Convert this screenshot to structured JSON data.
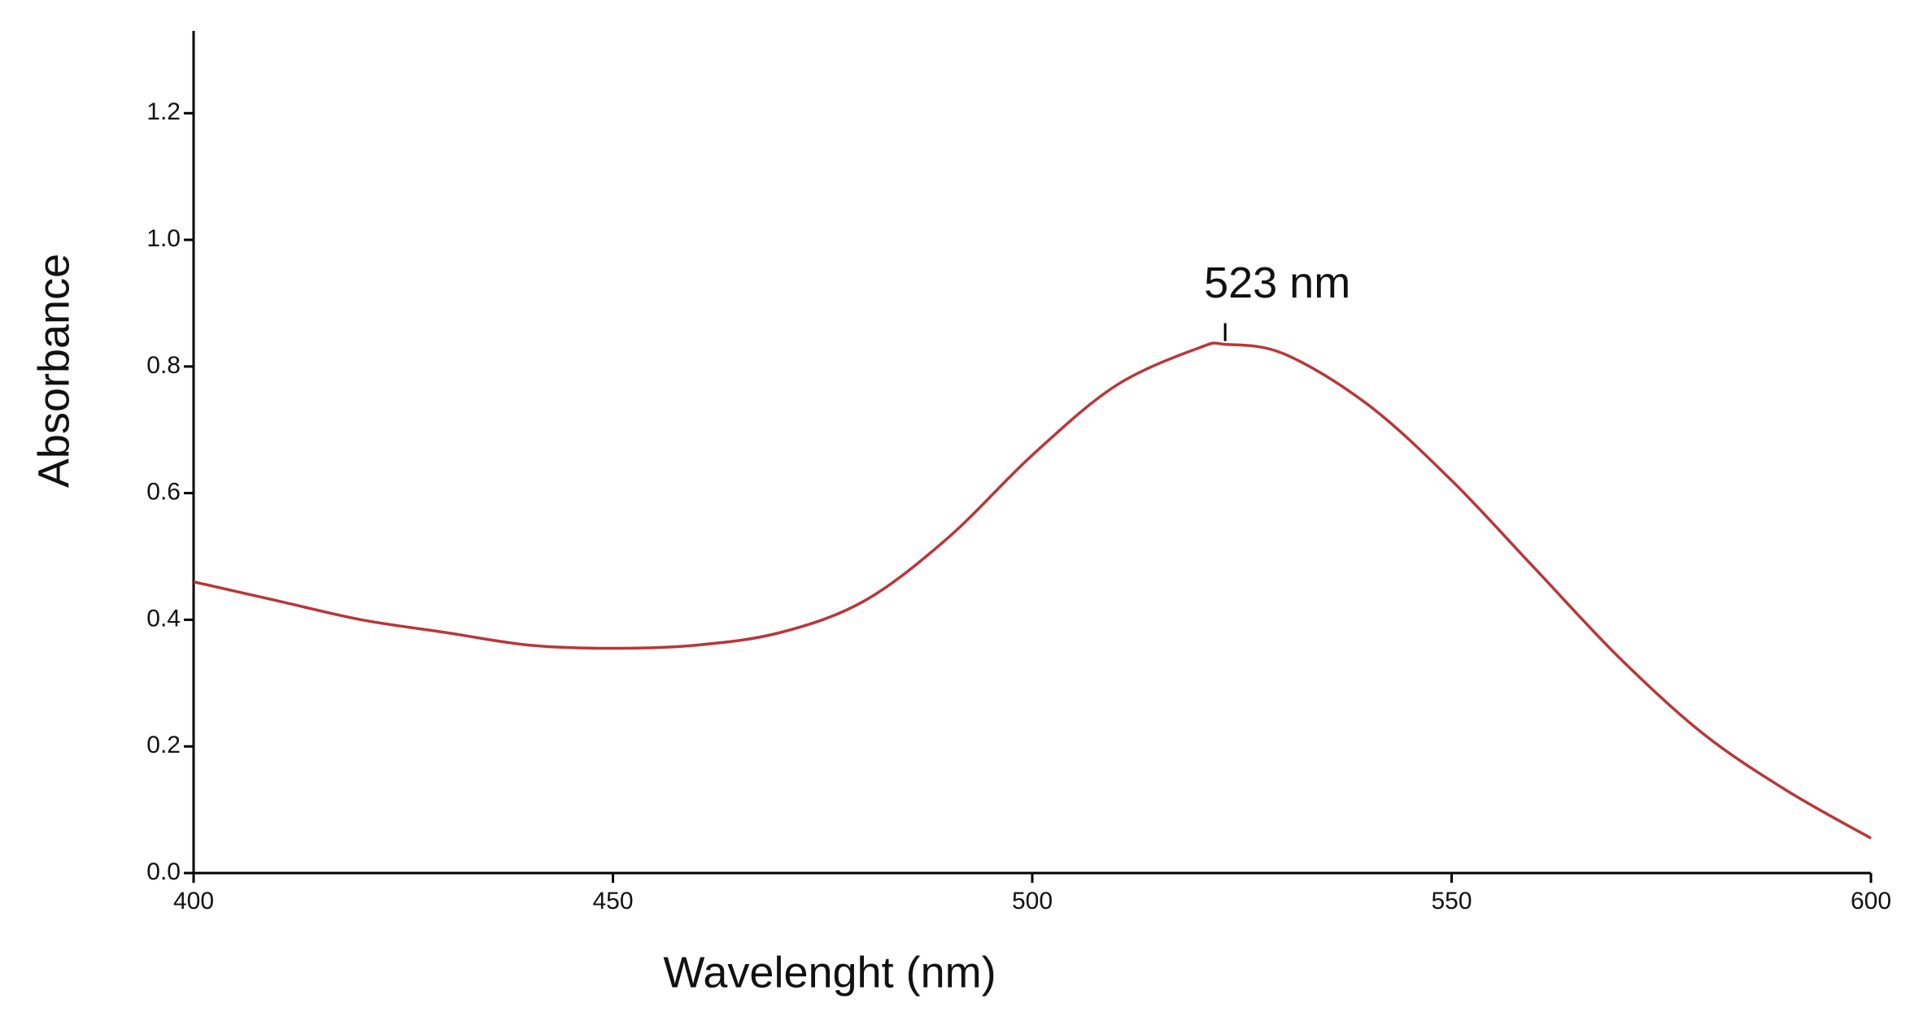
{
  "chart_data": {
    "type": "line",
    "xlabel": "Wavelenght (nm)",
    "ylabel": "Absorbance",
    "x": [
      400,
      410,
      420,
      430,
      440,
      450,
      460,
      470,
      480,
      490,
      500,
      510,
      520,
      523,
      530,
      540,
      550,
      560,
      570,
      580,
      590,
      600
    ],
    "series": [
      {
        "color": "#b8373a",
        "values": [
          0.46,
          0.43,
          0.4,
          0.38,
          0.36,
          0.355,
          0.36,
          0.38,
          0.43,
          0.53,
          0.66,
          0.77,
          0.83,
          0.835,
          0.82,
          0.74,
          0.62,
          0.48,
          0.34,
          0.22,
          0.13,
          0.055
        ]
      }
    ],
    "xlim": [
      400,
      600
    ],
    "xticks": [
      400,
      450,
      500,
      550,
      600
    ],
    "ylim": [
      0,
      1.33
    ],
    "yticks": [
      {
        "value": 0,
        "label": "0.0"
      },
      0.2,
      0.4,
      0.6,
      0.8,
      {
        "value": 1,
        "label": "1.0"
      },
      1.2
    ],
    "annotation": {
      "text": "523 nm",
      "x": 523,
      "y": 0.835
    },
    "grid": false
  }
}
